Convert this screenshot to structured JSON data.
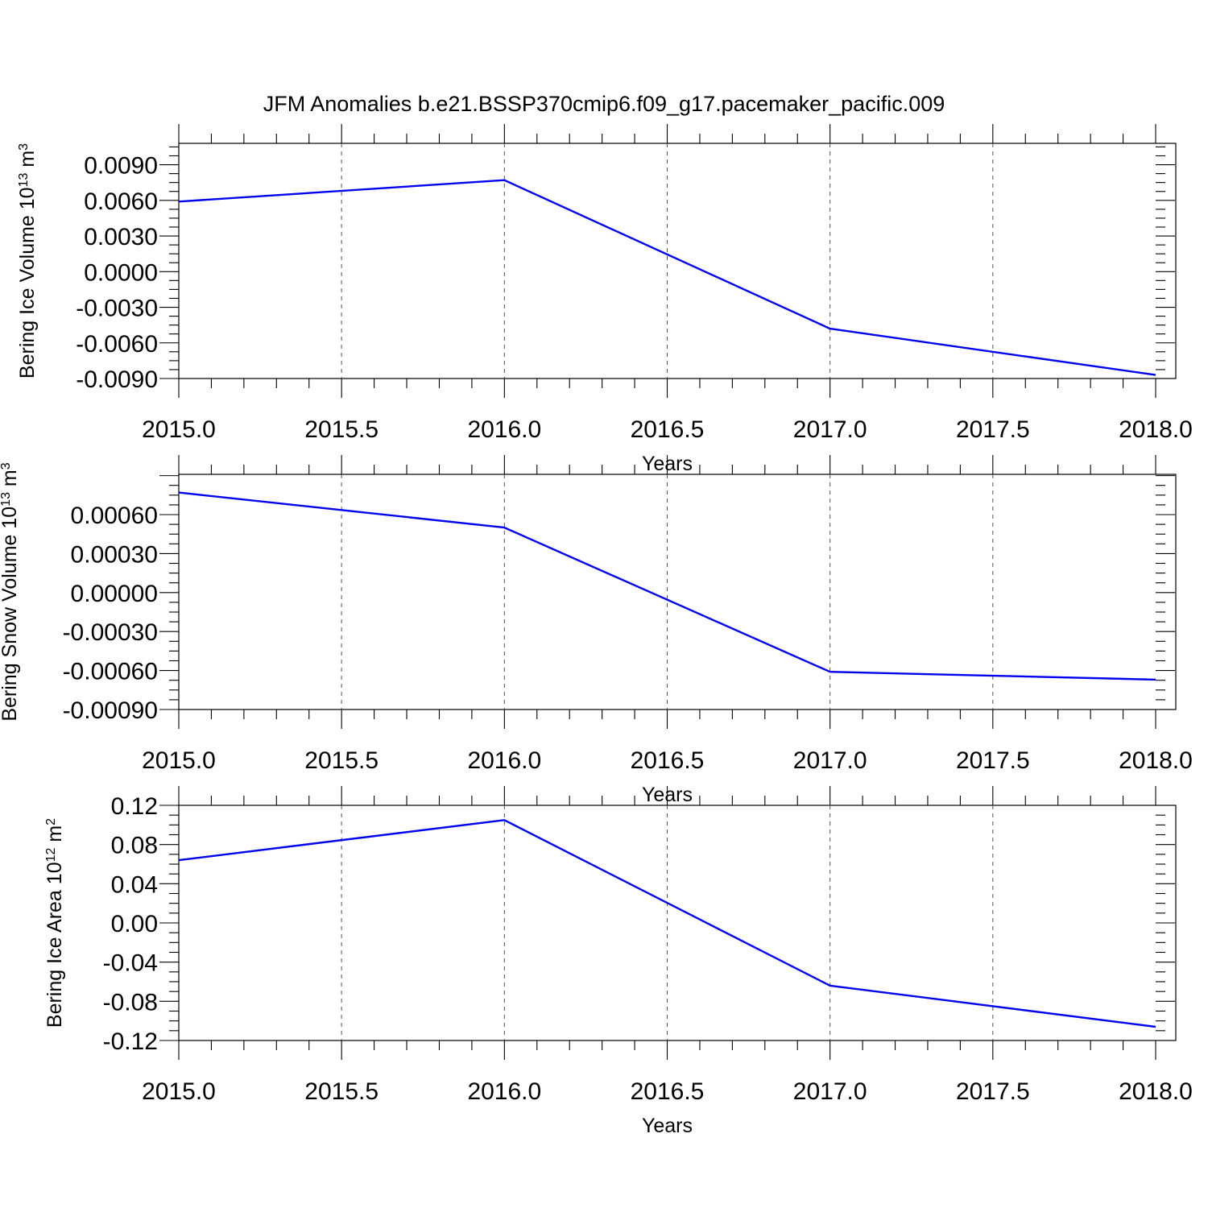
{
  "figure_title": "JFM Anomalies b.e21.BSSP370cmip6.f09_g17.pacemaker_pacific.009",
  "colors": {
    "series": "#0000ee",
    "axes": "#000000",
    "grid": "#555555"
  },
  "chart_data": [
    {
      "type": "line",
      "title": "",
      "xlabel": "Years",
      "ylabel": {
        "main": "Bering Ice Volume 10",
        "sup": "13",
        "unit": " m",
        "unit_sup": "3"
      },
      "xlim": [
        2015.0,
        2018.0
      ],
      "ylim": [
        -0.009,
        0.0108
      ],
      "x_ticks": [
        2015.0,
        2015.5,
        2016.0,
        2016.5,
        2017.0,
        2017.5,
        2018.0
      ],
      "x_tick_labels": [
        "2015.0",
        "2015.5",
        "2016.0",
        "2016.5",
        "2017.0",
        "2017.5",
        "2018.0"
      ],
      "y_ticks": [
        -0.009,
        -0.006,
        -0.003,
        0.0,
        0.003,
        0.006,
        0.009
      ],
      "y_tick_labels": [
        "-0.0090",
        "-0.0060",
        "-0.0030",
        "0.0000",
        "0.0030",
        "0.0060",
        "0.0090"
      ],
      "grid": "vertical dashed at major x ticks",
      "series": [
        {
          "x": [
            2015,
            2016,
            2017,
            2018
          ],
          "y": [
            0.0059,
            0.0077,
            -0.0048,
            -0.0087
          ]
        }
      ]
    },
    {
      "type": "line",
      "title": "",
      "xlabel": "Years",
      "ylabel": {
        "main": "Bering Snow Volume 10",
        "sup": "13",
        "unit": " m",
        "unit_sup": "3"
      },
      "xlim": [
        2015.0,
        2018.0
      ],
      "ylim": [
        -0.0009,
        0.00091
      ],
      "x_ticks": [
        2015.0,
        2015.5,
        2016.0,
        2016.5,
        2017.0,
        2017.5,
        2018.0
      ],
      "x_tick_labels": [
        "2015.0",
        "2015.5",
        "2016.0",
        "2016.5",
        "2017.0",
        "2017.5",
        "2018.0"
      ],
      "y_ticks": [
        -0.0009,
        -0.0006,
        -0.0003,
        0.0,
        0.0003,
        0.0006
      ],
      "y_tick_labels": [
        "-0.00090",
        "-0.00060",
        "-0.00030",
        "0.00000",
        "0.00030",
        "0.00060"
      ],
      "grid": "vertical dashed at major x ticks",
      "series": [
        {
          "x": [
            2015,
            2016,
            2017,
            2018
          ],
          "y": [
            0.00077,
            0.0005,
            -0.00061,
            -0.00067
          ]
        }
      ]
    },
    {
      "type": "line",
      "title": "",
      "xlabel": "Years",
      "ylabel": {
        "main": "Bering Ice Area 10",
        "sup": "12",
        "unit": " m",
        "unit_sup": "2"
      },
      "xlim": [
        2015.0,
        2018.0
      ],
      "ylim": [
        -0.12,
        0.12
      ],
      "x_ticks": [
        2015.0,
        2015.5,
        2016.0,
        2016.5,
        2017.0,
        2017.5,
        2018.0
      ],
      "x_tick_labels": [
        "2015.0",
        "2015.5",
        "2016.0",
        "2016.5",
        "2017.0",
        "2017.5",
        "2018.0"
      ],
      "y_ticks": [
        -0.12,
        -0.08,
        -0.04,
        0.0,
        0.04,
        0.08,
        0.12
      ],
      "y_tick_labels": [
        "-0.12",
        "-0.08",
        "-0.04",
        "0.00",
        "0.04",
        "0.08",
        "0.12"
      ],
      "grid": "vertical dashed at major x ticks",
      "series": [
        {
          "x": [
            2015,
            2016,
            2017,
            2018
          ],
          "y": [
            0.064,
            0.105,
            -0.064,
            -0.106
          ]
        }
      ]
    }
  ]
}
